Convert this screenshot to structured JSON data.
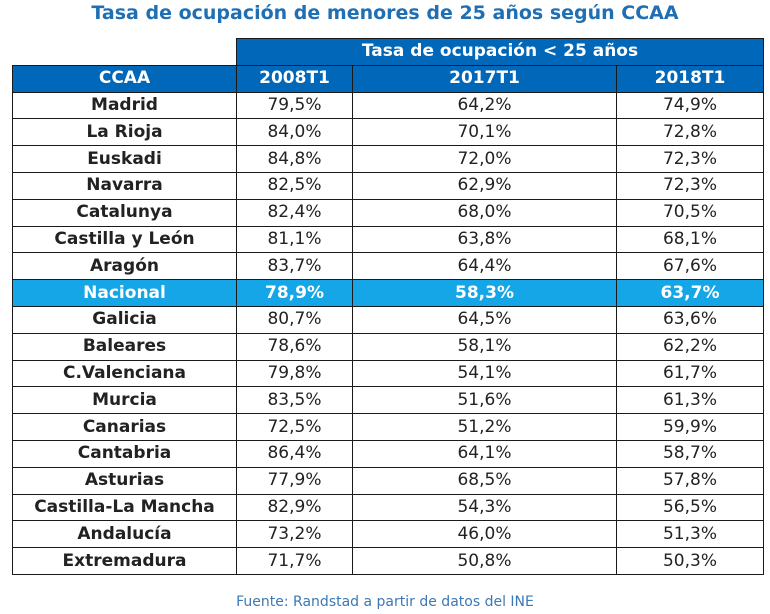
{
  "title": "Tasa de ocupación de menores de 25 años según CCAA",
  "table": {
    "group_header": "Tasa de ocupación < 25 años",
    "columns": [
      "CCAA",
      "2008T1",
      "2017T1",
      "2018T1"
    ],
    "rows": [
      {
        "region": "Madrid",
        "values": [
          "79,5%",
          "64,2%",
          "74,9%"
        ]
      },
      {
        "region": "La Rioja",
        "values": [
          "84,0%",
          "70,1%",
          "72,8%"
        ]
      },
      {
        "region": "Euskadi",
        "values": [
          "84,8%",
          "72,0%",
          "72,3%"
        ]
      },
      {
        "region": "Navarra",
        "values": [
          "82,5%",
          "62,9%",
          "72,3%"
        ]
      },
      {
        "region": "Catalunya",
        "values": [
          "82,4%",
          "68,0%",
          "70,5%"
        ]
      },
      {
        "region": "Castilla y León",
        "values": [
          "81,1%",
          "63,8%",
          "68,1%"
        ]
      },
      {
        "region": "Aragón",
        "values": [
          "83,7%",
          "64,4%",
          "67,6%"
        ]
      },
      {
        "region": "Nacional",
        "values": [
          "78,9%",
          "58,3%",
          "63,7%"
        ],
        "highlight": true
      },
      {
        "region": "Galicia",
        "values": [
          "80,7%",
          "64,5%",
          "63,6%"
        ]
      },
      {
        "region": "Baleares",
        "values": [
          "78,6%",
          "58,1%",
          "62,2%"
        ]
      },
      {
        "region": "C.Valenciana",
        "values": [
          "79,8%",
          "54,1%",
          "61,7%"
        ]
      },
      {
        "region": "Murcia",
        "values": [
          "83,5%",
          "51,6%",
          "61,3%"
        ]
      },
      {
        "region": "Canarias",
        "values": [
          "72,5%",
          "51,2%",
          "59,9%"
        ]
      },
      {
        "region": "Cantabria",
        "values": [
          "86,4%",
          "64,1%",
          "58,7%"
        ]
      },
      {
        "region": "Asturias",
        "values": [
          "77,9%",
          "68,5%",
          "57,8%"
        ]
      },
      {
        "region": "Castilla-La Mancha",
        "values": [
          "82,9%",
          "54,3%",
          "56,5%"
        ]
      },
      {
        "region": "Andalucía",
        "values": [
          "73,2%",
          "46,0%",
          "51,3%"
        ]
      },
      {
        "region": "Extremadura",
        "values": [
          "71,7%",
          "50,8%",
          "50,3%"
        ]
      }
    ]
  },
  "source": "Fuente: Randstad a partir de datos del INE",
  "colors": {
    "title": "#1f6fb2",
    "header_bg": "#0067b9",
    "highlight_bg": "#14a6e6",
    "source": "#3b78b5"
  }
}
